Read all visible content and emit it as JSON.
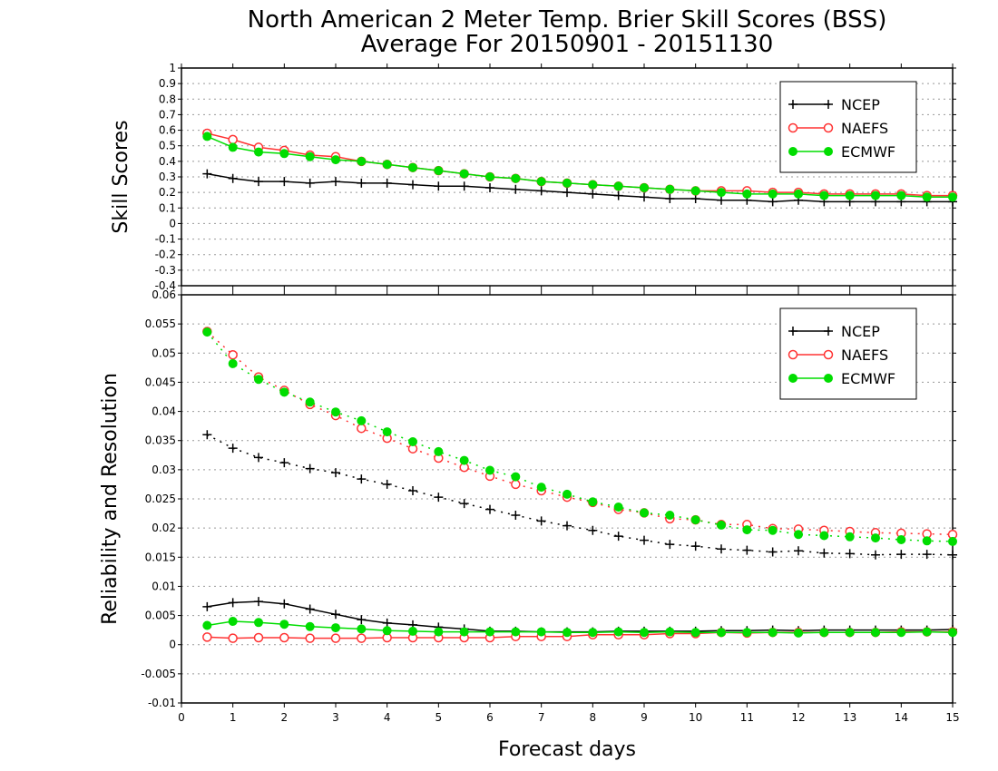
{
  "title_line1": "North American 2 Meter Temp. Brier Skill Scores (BSS)",
  "title_line2": "Average For 20150901 - 20151130",
  "xlabel": "Forecast days",
  "colors": {
    "NCEP": "#000000",
    "NAEFS": "#ff3333",
    "ECMWF": "#00dd00"
  },
  "chart_data": [
    {
      "type": "line",
      "ylabel": "Skill Scores",
      "xlim": [
        0,
        15
      ],
      "ylim": [
        -0.4,
        1
      ],
      "xticks": [
        "0",
        "1",
        "2",
        "3",
        "4",
        "5",
        "6",
        "7",
        "8",
        "9",
        "10",
        "11",
        "12",
        "13",
        "14",
        "15"
      ],
      "yticks": [
        "-0.4",
        "-0.3",
        "-0.2",
        "-0.1",
        "0",
        "0.1",
        "0.2",
        "0.3",
        "0.4",
        "0.5",
        "0.6",
        "0.7",
        "0.8",
        "0.9",
        "1"
      ],
      "grid": "horizontal dotted",
      "legend": {
        "placement": "top-right",
        "entries": [
          "NCEP",
          "NAEFS",
          "ECMWF"
        ]
      },
      "x": [
        0.5,
        1,
        1.5,
        2,
        2.5,
        3,
        3.5,
        4,
        4.5,
        5,
        5.5,
        6,
        6.5,
        7,
        7.5,
        8,
        8.5,
        9,
        9.5,
        10,
        10.5,
        11,
        11.5,
        12,
        12.5,
        13,
        13.5,
        14,
        14.5,
        15
      ],
      "series": [
        {
          "name": "NCEP",
          "style": "solid",
          "marker": "plus",
          "values": [
            0.32,
            0.29,
            0.27,
            0.27,
            0.26,
            0.27,
            0.26,
            0.26,
            0.25,
            0.24,
            0.24,
            0.23,
            0.22,
            0.21,
            0.2,
            0.19,
            0.18,
            0.17,
            0.16,
            0.16,
            0.15,
            0.15,
            0.14,
            0.15,
            0.14,
            0.14,
            0.14,
            0.14,
            0.14,
            0.14
          ]
        },
        {
          "name": "NAEFS",
          "style": "solid",
          "marker": "open-circle",
          "values": [
            0.58,
            0.54,
            0.49,
            0.47,
            0.44,
            0.43,
            0.4,
            0.38,
            0.36,
            0.34,
            0.32,
            0.3,
            0.29,
            0.27,
            0.26,
            0.25,
            0.24,
            0.23,
            0.22,
            0.21,
            0.21,
            0.21,
            0.2,
            0.2,
            0.19,
            0.19,
            0.19,
            0.19,
            0.18,
            0.18
          ]
        },
        {
          "name": "ECMWF",
          "style": "solid",
          "marker": "filled-circle",
          "values": [
            0.56,
            0.49,
            0.46,
            0.45,
            0.43,
            0.41,
            0.4,
            0.38,
            0.36,
            0.34,
            0.32,
            0.3,
            0.29,
            0.27,
            0.26,
            0.25,
            0.24,
            0.23,
            0.22,
            0.21,
            0.2,
            0.19,
            0.19,
            0.19,
            0.18,
            0.18,
            0.18,
            0.18,
            0.17,
            0.17
          ]
        }
      ]
    },
    {
      "type": "line",
      "ylabel": "Reliability and Resolution",
      "xlim": [
        0,
        15
      ],
      "ylim": [
        -0.01,
        0.06
      ],
      "xticks": [
        "0",
        "1",
        "2",
        "3",
        "4",
        "5",
        "6",
        "7",
        "8",
        "9",
        "10",
        "11",
        "12",
        "13",
        "14",
        "15"
      ],
      "yticks": [
        "-0.01",
        "-0.005",
        "0",
        "0.005",
        "0.01",
        "0.015",
        "0.02",
        "0.025",
        "0.03",
        "0.035",
        "0.04",
        "0.045",
        "0.05",
        "0.055",
        "0.06"
      ],
      "grid": "horizontal dotted",
      "legend": {
        "placement": "top-right",
        "entries": [
          "NCEP",
          "NAEFS",
          "ECMWF"
        ]
      },
      "x": [
        0.5,
        1,
        1.5,
        2,
        2.5,
        3,
        3.5,
        4,
        4.5,
        5,
        5.5,
        6,
        6.5,
        7,
        7.5,
        8,
        8.5,
        9,
        9.5,
        10,
        10.5,
        11,
        11.5,
        12,
        12.5,
        13,
        13.5,
        14,
        14.5,
        15
      ],
      "series": [
        {
          "name": "NCEP",
          "style": "dotted",
          "marker": "plus",
          "values": [
            0.036,
            0.0337,
            0.0321,
            0.0312,
            0.0302,
            0.0295,
            0.0284,
            0.0275,
            0.0264,
            0.0253,
            0.0242,
            0.0232,
            0.0222,
            0.0212,
            0.0204,
            0.0196,
            0.0186,
            0.0179,
            0.0172,
            0.0169,
            0.0164,
            0.0162,
            0.0159,
            0.0161,
            0.0157,
            0.0156,
            0.0154,
            0.0155,
            0.0155,
            0.0154
          ]
        },
        {
          "name": "NAEFS",
          "style": "dotted",
          "marker": "open-circle",
          "values": [
            0.0537,
            0.0497,
            0.0459,
            0.0436,
            0.0412,
            0.0393,
            0.0371,
            0.0354,
            0.0336,
            0.032,
            0.0304,
            0.0289,
            0.0275,
            0.0264,
            0.0253,
            0.0244,
            0.0232,
            0.0226,
            0.0216,
            0.0214,
            0.0206,
            0.0206,
            0.0199,
            0.0198,
            0.0196,
            0.0194,
            0.0192,
            0.0191,
            0.019,
            0.0189
          ]
        },
        {
          "name": "ECMWF",
          "style": "dotted",
          "marker": "filled-circle",
          "values": [
            0.0536,
            0.0482,
            0.0455,
            0.0433,
            0.0416,
            0.0399,
            0.0384,
            0.0365,
            0.0348,
            0.0331,
            0.0316,
            0.0299,
            0.0288,
            0.027,
            0.0258,
            0.0245,
            0.0236,
            0.0226,
            0.0222,
            0.0214,
            0.0205,
            0.0197,
            0.0196,
            0.0189,
            0.0187,
            0.0185,
            0.0183,
            0.018,
            0.0178,
            0.0177
          ]
        },
        {
          "name": "NCEP",
          "style": "solid",
          "marker": "plus",
          "values": [
            0.0065,
            0.0072,
            0.0074,
            0.007,
            0.0061,
            0.0052,
            0.0043,
            0.0037,
            0.0034,
            0.003,
            0.0027,
            0.0023,
            0.0023,
            0.0022,
            0.0022,
            0.0022,
            0.0023,
            0.0023,
            0.0023,
            0.0023,
            0.0024,
            0.0024,
            0.0025,
            0.0024,
            0.0025,
            0.0025,
            0.0025,
            0.0025,
            0.0025,
            0.0026
          ]
        },
        {
          "name": "NAEFS",
          "style": "solid",
          "marker": "open-circle",
          "values": [
            0.0013,
            0.0011,
            0.0012,
            0.0012,
            0.0011,
            0.0011,
            0.0011,
            0.0012,
            0.0012,
            0.0012,
            0.0012,
            0.0012,
            0.0014,
            0.0014,
            0.0014,
            0.0017,
            0.0017,
            0.0017,
            0.0019,
            0.0019,
            0.0021,
            0.002,
            0.0021,
            0.0021,
            0.0021,
            0.0021,
            0.0021,
            0.0022,
            0.0022,
            0.0022
          ]
        },
        {
          "name": "ECMWF",
          "style": "solid",
          "marker": "filled-circle",
          "values": [
            0.0033,
            0.004,
            0.0038,
            0.0035,
            0.0031,
            0.0029,
            0.0027,
            0.0024,
            0.0023,
            0.0022,
            0.0022,
            0.0022,
            0.0022,
            0.0022,
            0.0021,
            0.0021,
            0.0022,
            0.0021,
            0.0022,
            0.0021,
            0.0021,
            0.0021,
            0.0021,
            0.002,
            0.0021,
            0.0021,
            0.0021,
            0.0021,
            0.0022,
            0.0021
          ]
        }
      ]
    }
  ]
}
